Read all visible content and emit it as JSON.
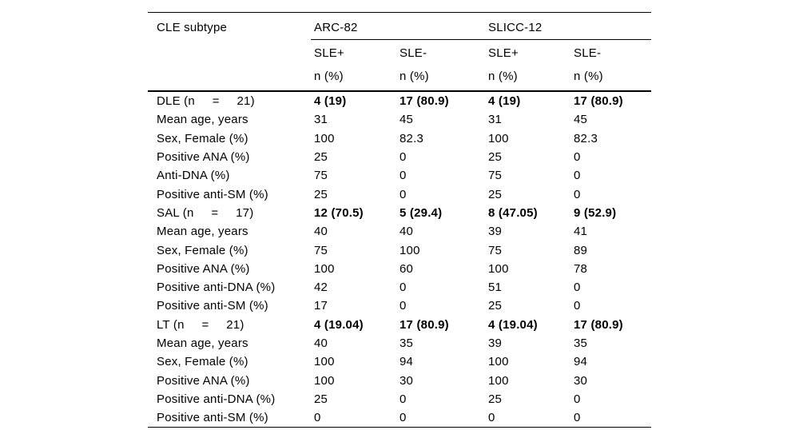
{
  "table": {
    "corner_label": "CLE subtype",
    "col_groups": [
      {
        "label": "ARC-82"
      },
      {
        "label": "SLICC-12"
      }
    ],
    "sub_headers": [
      "SLE+",
      "SLE-",
      "SLE+",
      "SLE-"
    ],
    "unit_row": [
      "n (%)",
      "n (%)",
      "n (%)",
      "n (%)"
    ],
    "rows": [
      {
        "label": "DLE (n     =     21)",
        "group": true,
        "values": [
          "4 (19)",
          "17 (80.9)",
          "4 (19)",
          "17 (80.9)"
        ]
      },
      {
        "label": "Mean age, years",
        "group": false,
        "values": [
          "31",
          "45",
          "31",
          "45"
        ]
      },
      {
        "label": "Sex, Female (%)",
        "group": false,
        "values": [
          "100",
          "82.3",
          "100",
          "82.3"
        ]
      },
      {
        "label": "Positive ANA (%)",
        "group": false,
        "values": [
          "25",
          "0",
          "25",
          "0"
        ]
      },
      {
        "label": "Anti-DNA (%)",
        "group": false,
        "values": [
          "75",
          "0",
          "75",
          "0"
        ]
      },
      {
        "label": "Positive anti-SM (%)",
        "group": false,
        "values": [
          "25",
          "0",
          "25",
          "0"
        ]
      },
      {
        "label": "SAL (n     =     17)",
        "group": true,
        "values": [
          "12 (70.5)",
          "5 (29.4)",
          "8 (47.05)",
          "9 (52.9)"
        ]
      },
      {
        "label": "Mean age, years",
        "group": false,
        "values": [
          "40",
          "40",
          "39",
          "41"
        ]
      },
      {
        "label": "Sex, Female (%)",
        "group": false,
        "values": [
          "75",
          "100",
          "75",
          "89"
        ]
      },
      {
        "label": "Positive ANA (%)",
        "group": false,
        "values": [
          "100",
          "60",
          "100",
          "78"
        ]
      },
      {
        "label": "Positive anti-DNA (%)",
        "group": false,
        "values": [
          "42",
          "0",
          "51",
          "0"
        ]
      },
      {
        "label": "Positive anti-SM (%)",
        "group": false,
        "values": [
          "17",
          "0",
          "25",
          "0"
        ]
      },
      {
        "label": "LT (n     =     21)",
        "group": true,
        "values": [
          "4 (19.04)",
          "17 (80.9)",
          "4 (19.04)",
          "17 (80.9)"
        ]
      },
      {
        "label": "Mean age, years",
        "group": false,
        "values": [
          "40",
          "35",
          "39",
          "35"
        ]
      },
      {
        "label": "Sex, Female (%)",
        "group": false,
        "values": [
          "100",
          "94",
          "100",
          "94"
        ]
      },
      {
        "label": "Positive ANA (%)",
        "group": false,
        "values": [
          "100",
          "30",
          "100",
          "30"
        ]
      },
      {
        "label": "Positive anti-DNA (%)",
        "group": false,
        "values": [
          "25",
          "0",
          "25",
          "0"
        ]
      },
      {
        "label": "Positive anti-SM (%)",
        "group": false,
        "values": [
          "0",
          "0",
          "0",
          "0"
        ]
      }
    ]
  },
  "colors": {
    "text": "#000000",
    "background": "#ffffff",
    "rule": "#000000"
  }
}
